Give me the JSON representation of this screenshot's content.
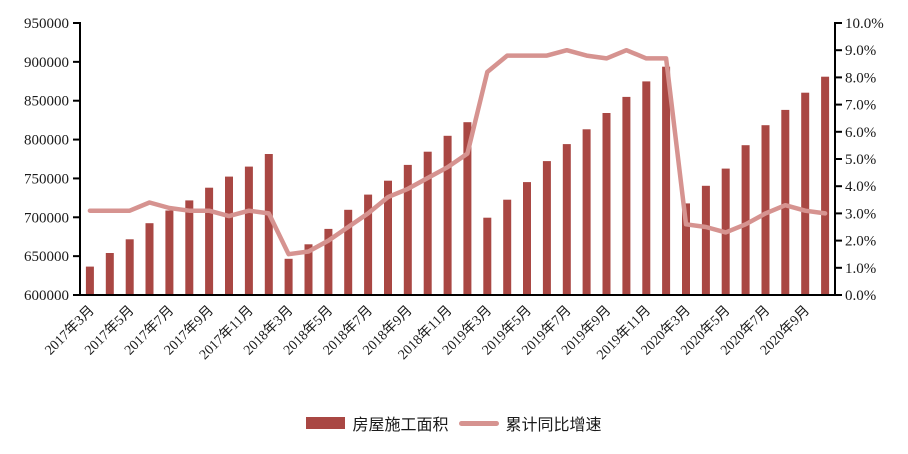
{
  "chart_data": {
    "type": "combo_bar_line",
    "title": "",
    "grid": false,
    "legend_position": "bottom",
    "categories": [
      "2017年3月",
      "2017年4月",
      "2017年5月",
      "2017年6月",
      "2017年7月",
      "2017年8月",
      "2017年9月",
      "2017年10月",
      "2017年11月",
      "2017年12月",
      "2018年3月",
      "2018年4月",
      "2018年5月",
      "2018年6月",
      "2018年7月",
      "2018年8月",
      "2018年9月",
      "2018年10月",
      "2018年11月",
      "2018年12月",
      "2019年3月",
      "2019年4月",
      "2019年5月",
      "2019年6月",
      "2019年7月",
      "2019年8月",
      "2019年9月",
      "2019年10月",
      "2019年11月",
      "2019年12月",
      "2020年3月",
      "2020年4月",
      "2020年5月",
      "2020年6月",
      "2020年7月",
      "2020年8月",
      "2020年9月",
      "2020年10月"
    ],
    "x_label_interval": 2,
    "visible_x_labels": [
      "2017年3月",
      "2017年5月",
      "2017年7月",
      "2017年9月",
      "2017年11月",
      "2018年3月",
      "2018年5月",
      "2018年7月",
      "2018年9月",
      "2018年11月",
      "2019年3月",
      "2019年5月",
      "2019年7月",
      "2019年9月",
      "2019年11月",
      "2020年3月",
      "2020年5月",
      "2020年7月",
      "2020年9月"
    ],
    "series": [
      {
        "name": "房屋施工面积",
        "type": "bar",
        "y_axis": "left",
        "color": "#A94743",
        "values": [
          636577,
          654054,
          671688,
          692326,
          708682,
          721781,
          738065,
          752334,
          765277,
          781484,
          646556,
          665239,
          684991,
          709649,
          729215,
          747052,
          767375,
          784425,
          804886,
          822300,
          699444,
          722569,
          745286,
          772292,
          794207,
          813156,
          834201,
          854882,
          874814,
          893821,
          717886,
          740568,
          762628,
          792721,
          818513,
          838168,
          860350,
          880936
        ]
      },
      {
        "name": "累计同比增速",
        "type": "line",
        "y_axis": "right",
        "color": "#D69390",
        "values": [
          3.1,
          3.1,
          3.1,
          3.4,
          3.2,
          3.1,
          3.1,
          2.9,
          3.1,
          3.0,
          1.5,
          1.6,
          2.0,
          2.5,
          3.0,
          3.6,
          3.9,
          4.3,
          4.7,
          5.2,
          8.2,
          8.8,
          8.8,
          8.8,
          9.0,
          8.8,
          8.7,
          9.0,
          8.7,
          8.7,
          2.6,
          2.5,
          2.3,
          2.6,
          3.0,
          3.3,
          3.1,
          3.0
        ]
      }
    ],
    "left_axis": {
      "min": 600000,
      "max": 950000,
      "major_step": 50000,
      "tick_labels": [
        "600000",
        "650000",
        "700000",
        "750000",
        "800000",
        "850000",
        "900000",
        "950000"
      ]
    },
    "right_axis": {
      "min": 0,
      "max": 10,
      "major_step": 1,
      "tick_labels": [
        "0.0%",
        "1.0%",
        "2.0%",
        "3.0%",
        "4.0%",
        "5.0%",
        "6.0%",
        "7.0%",
        "8.0%",
        "9.0%",
        "10.0%"
      ]
    },
    "axis_color": "#000000",
    "text_color": "#1a1a1a"
  }
}
